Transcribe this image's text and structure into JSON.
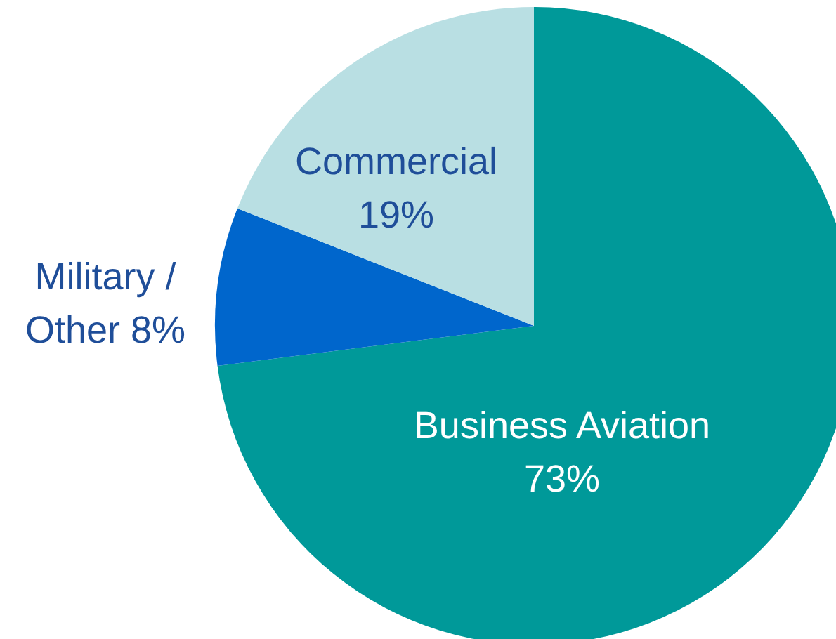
{
  "chart_data": {
    "type": "pie",
    "categories": [
      "Business Aviation",
      "Military / Other",
      "Commercial"
    ],
    "values": [
      73,
      8,
      19
    ],
    "colors": [
      "#009999",
      "#0066cc",
      "#b9dfe3"
    ],
    "value_labels": [
      "73%",
      "8%",
      "19%"
    ]
  }
}
